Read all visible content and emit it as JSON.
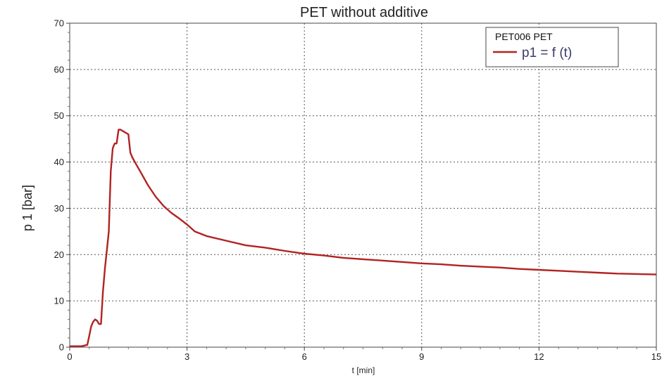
{
  "chart_data": {
    "type": "line",
    "title": "PET without additive",
    "xlabel": "t [min]",
    "ylabel": "p 1 [bar]",
    "xlim": [
      0,
      15
    ],
    "ylim": [
      0,
      70
    ],
    "x_ticks": [
      "0",
      "3",
      "6",
      "9",
      "12",
      "15"
    ],
    "y_ticks": [
      "0",
      "10",
      "20",
      "30",
      "40",
      "50",
      "60",
      "70"
    ],
    "grid": true,
    "legend": {
      "position": "top-right",
      "header": "PET006 PET",
      "series_label": "p1 = f (t)"
    },
    "series": [
      {
        "name": "p1 = f (t)",
        "color": "#b22222",
        "x": [
          0,
          0.3,
          0.45,
          0.5,
          0.55,
          0.6,
          0.65,
          0.7,
          0.75,
          0.8,
          0.85,
          0.9,
          0.95,
          1.0,
          1.05,
          1.1,
          1.15,
          1.2,
          1.25,
          1.3,
          1.4,
          1.5,
          1.55,
          1.6,
          1.7,
          1.8,
          2.0,
          2.2,
          2.4,
          2.6,
          2.8,
          3.0,
          3.2,
          3.5,
          4.0,
          4.5,
          5.0,
          5.5,
          6.0,
          6.5,
          7.0,
          7.5,
          8.0,
          8.5,
          9.0,
          9.5,
          10.0,
          10.5,
          11.0,
          11.5,
          12.0,
          12.5,
          13.0,
          13.5,
          14.0,
          14.5,
          15.0
        ],
        "y": [
          0.2,
          0.2,
          0.5,
          2.5,
          4.5,
          5.5,
          6.0,
          5.7,
          5.0,
          5.0,
          12,
          17,
          21,
          25,
          38,
          43,
          44,
          44,
          47,
          47,
          46.5,
          46,
          42,
          41,
          39.5,
          38,
          35,
          32.5,
          30.5,
          29,
          27.8,
          26.5,
          25,
          24,
          23,
          22,
          21.5,
          20.8,
          20.2,
          19.8,
          19.3,
          19.0,
          18.7,
          18.4,
          18.1,
          17.9,
          17.6,
          17.4,
          17.2,
          16.9,
          16.7,
          16.5,
          16.3,
          16.1,
          15.9,
          15.8,
          15.7
        ]
      }
    ]
  }
}
